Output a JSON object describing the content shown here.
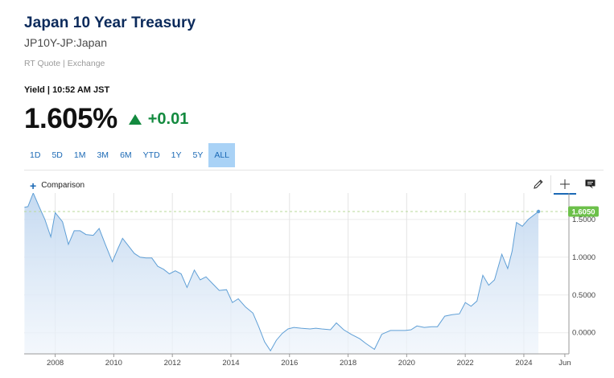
{
  "header": {
    "title": "Japan 10 Year Treasury",
    "subtitle": "JP10Y-JP:Japan",
    "quote_meta": "RT Quote | Exchange"
  },
  "price": {
    "label": "Yield | 10:52 AM JST",
    "value": "1.605%",
    "change": "+0.01",
    "direction": "up",
    "change_color": "#138a3f"
  },
  "ranges": {
    "items": [
      "1D",
      "5D",
      "1M",
      "3M",
      "6M",
      "YTD",
      "1Y",
      "5Y",
      "ALL"
    ],
    "active": "ALL"
  },
  "toolbar": {
    "comparison_label": "Comparison",
    "icons": [
      "pencil-icon",
      "crosshair-icon",
      "comment-icon"
    ]
  },
  "chart_data": {
    "type": "area",
    "title": "",
    "xlabel": "",
    "ylabel": "",
    "x_ticks": [
      "2008",
      "2010",
      "2012",
      "2014",
      "2016",
      "2018",
      "2020",
      "2022",
      "2024",
      "Jun"
    ],
    "y_ticks": [
      "1.5000",
      "1.0000",
      "0.5000",
      "0.0000"
    ],
    "y_range": [
      -0.28,
      1.85
    ],
    "x_range": [
      2006.94,
      2025.54
    ],
    "current_value": "1.6050",
    "current_value_color": "#6cc04a",
    "line_color": "#5f9fd6",
    "fill_color": "#c9def3",
    "grid": true,
    "series": [
      {
        "points": [
          [
            2006.95,
            1.66
          ],
          [
            2007.07,
            1.67
          ],
          [
            2007.25,
            1.85
          ],
          [
            2007.45,
            1.67
          ],
          [
            2007.65,
            1.5
          ],
          [
            2007.85,
            1.27
          ],
          [
            2008.0,
            1.59
          ],
          [
            2008.25,
            1.47
          ],
          [
            2008.45,
            1.17
          ],
          [
            2008.65,
            1.35
          ],
          [
            2008.85,
            1.35
          ],
          [
            2009.05,
            1.3
          ],
          [
            2009.3,
            1.29
          ],
          [
            2009.5,
            1.38
          ],
          [
            2009.7,
            1.18
          ],
          [
            2009.95,
            0.94
          ],
          [
            2010.15,
            1.12
          ],
          [
            2010.3,
            1.25
          ],
          [
            2010.5,
            1.15
          ],
          [
            2010.7,
            1.05
          ],
          [
            2010.9,
            1.0
          ],
          [
            2011.1,
            0.99
          ],
          [
            2011.3,
            0.99
          ],
          [
            2011.5,
            0.88
          ],
          [
            2011.7,
            0.84
          ],
          [
            2011.9,
            0.78
          ],
          [
            2012.1,
            0.82
          ],
          [
            2012.3,
            0.78
          ],
          [
            2012.5,
            0.6
          ],
          [
            2012.75,
            0.83
          ],
          [
            2012.95,
            0.7
          ],
          [
            2013.15,
            0.74
          ],
          [
            2013.4,
            0.64
          ],
          [
            2013.6,
            0.56
          ],
          [
            2013.85,
            0.57
          ],
          [
            2014.05,
            0.4
          ],
          [
            2014.25,
            0.45
          ],
          [
            2014.5,
            0.34
          ],
          [
            2014.75,
            0.26
          ],
          [
            2014.95,
            0.08
          ],
          [
            2015.15,
            -0.12
          ],
          [
            2015.35,
            -0.24
          ],
          [
            2015.55,
            -0.1
          ],
          [
            2015.75,
            -0.01
          ],
          [
            2015.95,
            0.05
          ],
          [
            2016.15,
            0.07
          ],
          [
            2016.4,
            0.06
          ],
          [
            2016.7,
            0.05
          ],
          [
            2016.9,
            0.06
          ],
          [
            2017.1,
            0.05
          ],
          [
            2017.4,
            0.04
          ],
          [
            2017.6,
            0.13
          ],
          [
            2017.85,
            0.04
          ],
          [
            2018.1,
            -0.02
          ],
          [
            2018.4,
            -0.08
          ],
          [
            2018.6,
            -0.14
          ],
          [
            2018.9,
            -0.22
          ],
          [
            2019.15,
            -0.02
          ],
          [
            2019.45,
            0.03
          ],
          [
            2019.7,
            0.03
          ],
          [
            2019.95,
            0.03
          ],
          [
            2020.15,
            0.04
          ],
          [
            2020.35,
            0.09
          ],
          [
            2020.6,
            0.07
          ],
          [
            2020.85,
            0.08
          ],
          [
            2021.05,
            0.08
          ],
          [
            2021.3,
            0.22
          ],
          [
            2021.55,
            0.24
          ],
          [
            2021.8,
            0.25
          ],
          [
            2022.0,
            0.4
          ],
          [
            2022.2,
            0.35
          ],
          [
            2022.4,
            0.42
          ],
          [
            2022.6,
            0.76
          ],
          [
            2022.8,
            0.63
          ],
          [
            2023.0,
            0.7
          ],
          [
            2023.25,
            1.04
          ],
          [
            2023.45,
            0.85
          ],
          [
            2023.6,
            1.08
          ],
          [
            2023.75,
            1.46
          ],
          [
            2023.95,
            1.41
          ],
          [
            2024.15,
            1.5
          ],
          [
            2024.35,
            1.56
          ],
          [
            2024.5,
            1.605
          ]
        ]
      }
    ]
  }
}
